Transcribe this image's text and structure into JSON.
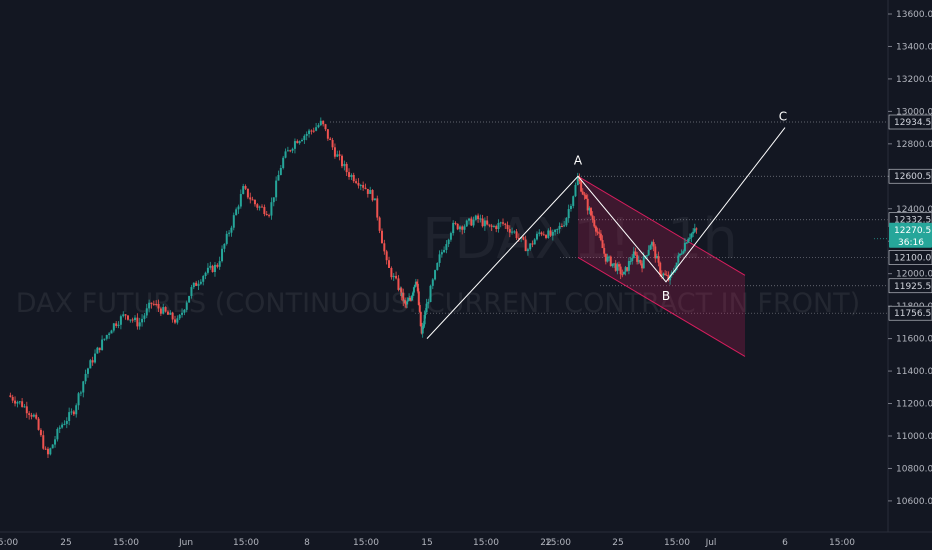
{
  "watermark": {
    "symbol": "FDAX1!, 1h",
    "description": "DAX FUTURES (CONTINUOUS: CURRENT CONTRACT IN FRONT)"
  },
  "colors": {
    "background": "#131722",
    "up_candle": "#26a69a",
    "down_candle": "#ef5350",
    "channel": "#e91e63",
    "wave": "#ffffff",
    "price_badge": "#26a69a",
    "axis_text": "#b2b5be"
  },
  "price_axis": {
    "ticks": [
      "13600.0",
      "13400.0",
      "13200.0",
      "13000.0",
      "12800.0",
      "12600.0",
      "12400.0",
      "12200.0",
      "12000.0",
      "11800.0",
      "11600.0",
      "11400.0",
      "11200.0",
      "11000.0",
      "10800.0",
      "10600.0"
    ],
    "level_labels": [
      "12934.5",
      "12600.5",
      "12332.5",
      "12100.0",
      "11925.5",
      "11756.5"
    ],
    "current_price": "12270.5",
    "countdown": "36:16"
  },
  "time_axis": {
    "ticks": [
      "5:00",
      "25",
      "15:00",
      "Jun",
      "15:00",
      "8",
      "15:00",
      "15",
      "15:00",
      "22",
      "15:00",
      "25",
      "15:00",
      "Jul",
      "6",
      "15:00"
    ]
  },
  "chart_data": {
    "type": "candlestick",
    "instrument": "FDAX1!",
    "interval": "1h",
    "y_range": [
      10500,
      13700
    ],
    "x_axis_labels": [
      "5:00",
      "25",
      "15:00",
      "Jun",
      "15:00",
      "8",
      "15:00",
      "15",
      "15:00",
      "22",
      "15:00",
      "25",
      "15:00",
      "Jul",
      "6",
      "15:00"
    ],
    "horizontal_levels": [
      12934.5,
      12600.5,
      12332.5,
      12100.0,
      11925.5,
      11756.5
    ],
    "wave_pattern": {
      "labels": [
        "A",
        "B",
        "C"
      ],
      "points": [
        {
          "label": "",
          "date": "Jun 15",
          "price": 11600
        },
        {
          "label": "A",
          "date": "Jun 23",
          "price": 12600
        },
        {
          "label": "B",
          "date": "Jun 26",
          "price": 11950
        },
        {
          "label": "C",
          "date": "Jul 6",
          "price": 12900
        }
      ]
    },
    "channel": {
      "upper": [
        {
          "date": "Jun 23",
          "price": 12600
        },
        {
          "date": "Jul 2",
          "price": 11990
        }
      ],
      "lower": [
        {
          "date": "Jun 23",
          "price": 12100
        },
        {
          "date": "Jul 2",
          "price": 11490
        }
      ]
    },
    "price_path": [
      [
        0,
        11250
      ],
      [
        2,
        11200
      ],
      [
        4,
        11120
      ],
      [
        6,
        10870
      ],
      [
        8,
        11060
      ],
      [
        10,
        11150
      ],
      [
        12,
        11400
      ],
      [
        14,
        11550
      ],
      [
        16,
        11680
      ],
      [
        18,
        11750
      ],
      [
        20,
        11690
      ],
      [
        22,
        11820
      ],
      [
        24,
        11760
      ],
      [
        26,
        11700
      ],
      [
        28,
        11900
      ],
      [
        30,
        12000
      ],
      [
        32,
        12050
      ],
      [
        34,
        12280
      ],
      [
        36,
        12520
      ],
      [
        38,
        12420
      ],
      [
        40,
        12380
      ],
      [
        42,
        12700
      ],
      [
        44,
        12820
      ],
      [
        46,
        12870
      ],
      [
        48,
        12930
      ],
      [
        50,
        12750
      ],
      [
        52,
        12620
      ],
      [
        54,
        12560
      ],
      [
        56,
        12470
      ],
      [
        58,
        12050
      ],
      [
        60,
        11900
      ],
      [
        62,
        11800
      ],
      [
        64,
        11850
      ],
      [
        66,
        11980
      ],
      [
        68,
        11620
      ],
      [
        70,
        11820
      ],
      [
        72,
        12100
      ],
      [
        74,
        12290
      ],
      [
        76,
        12300
      ],
      [
        78,
        12340
      ],
      [
        80,
        12280
      ],
      [
        82,
        12310
      ],
      [
        84,
        12250
      ],
      [
        86,
        12150
      ],
      [
        88,
        12260
      ],
      [
        90,
        12230
      ],
      [
        92,
        12330
      ],
      [
        94,
        12590
      ],
      [
        96,
        12420
      ],
      [
        98,
        12280
      ],
      [
        100,
        12100
      ],
      [
        102,
        12050
      ],
      [
        104,
        11990
      ],
      [
        106,
        12120
      ],
      [
        108,
        12060
      ],
      [
        110,
        12200
      ],
      [
        112,
        12010
      ],
      [
        114,
        11960
      ],
      [
        116,
        12100
      ],
      [
        118,
        12230
      ],
      [
        120,
        12270
      ]
    ]
  }
}
